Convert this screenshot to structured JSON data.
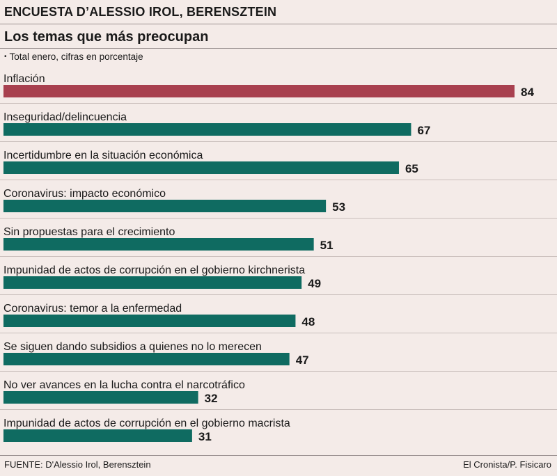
{
  "header": {
    "kicker": "ENCUESTA D’ALESSIO IROL, BERENSZTEIN",
    "title": "Los temas que más preocupan",
    "subtitle": "Total enero, cifras en porcentaje"
  },
  "footer": {
    "source": "FUENTE: D'Alessio Irol, Berensztein",
    "credit": "El Cronista/P. Fisicaro"
  },
  "colors": {
    "highlight": "#a8404f",
    "bar": "#0f6b61",
    "background": "#f4ebe8"
  },
  "chart_data": {
    "type": "bar",
    "orientation": "horizontal",
    "title": "Los temas que más preocupan",
    "subtitle": "Total enero, cifras en porcentaje",
    "xlim": [
      0,
      90
    ],
    "categories": [
      "Inflación",
      "Inseguridad/delincuencia",
      "Incertidumbre en la situación económica",
      "Coronavirus: impacto económico",
      "Sin propuestas para el crecimiento",
      "Impunidad de actos de corrupción en el gobierno kirchnerista",
      "Coronavirus: temor a la enfermedad",
      "Se siguen dando subsidios a quienes no lo merecen",
      "No ver avances en la lucha contra el narcotráfico",
      "Impunidad de actos de corrupción en el gobierno macrista"
    ],
    "values": [
      84,
      67,
      65,
      53,
      51,
      49,
      48,
      47,
      32,
      31
    ],
    "highlighted_index": 0
  }
}
